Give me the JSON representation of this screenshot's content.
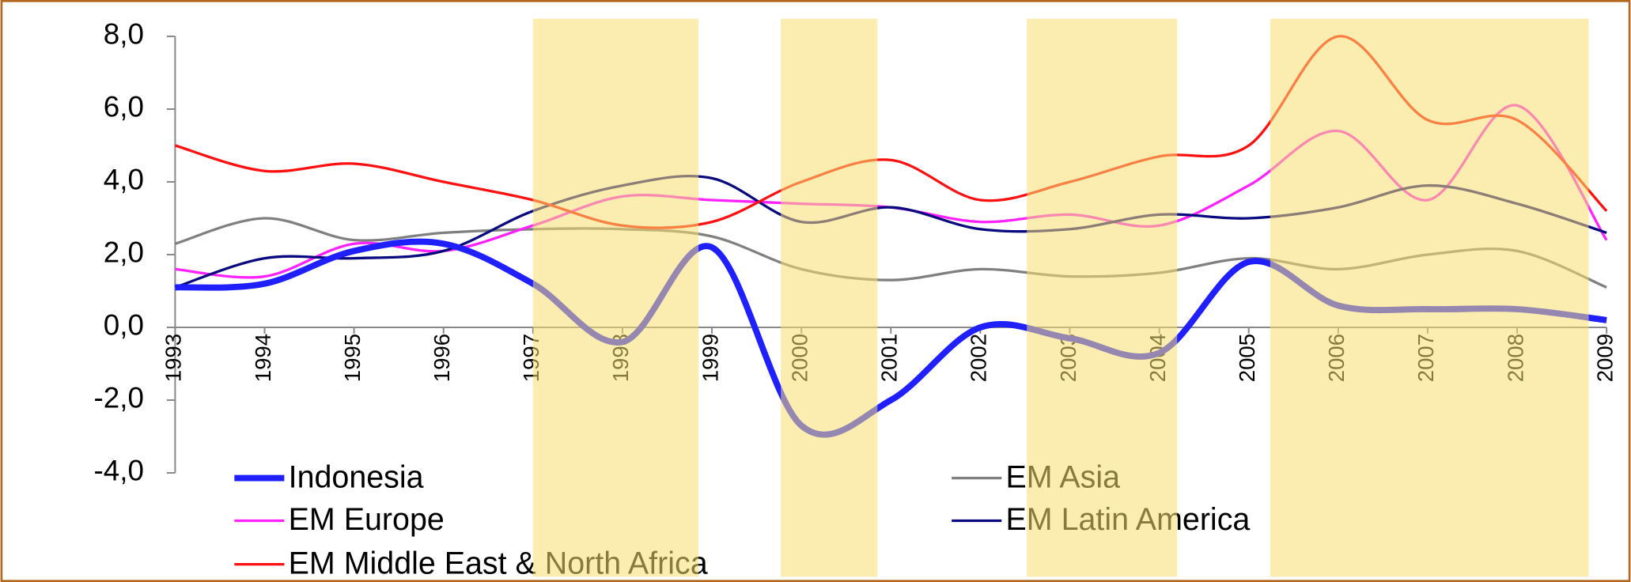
{
  "chart_data": {
    "type": "line",
    "x": [
      1993,
      1994,
      1995,
      1996,
      1997,
      1998,
      1999,
      2000,
      2001,
      2002,
      2003,
      2004,
      2005,
      2006,
      2007,
      2008,
      2009
    ],
    "xlim": [
      1993,
      2009
    ],
    "xticks": [
      1993,
      1994,
      1995,
      1996,
      1997,
      1998,
      1999,
      2000,
      2001,
      2002,
      2003,
      2004,
      2005,
      2006,
      2007,
      2008,
      2009
    ],
    "ylim": [
      -4,
      8
    ],
    "yticks": [
      {
        "value": -4,
        "label": "-4,0"
      },
      {
        "value": -2,
        "label": "-2,0"
      },
      {
        "value": 0,
        "label": "0,0"
      },
      {
        "value": 2,
        "label": "2,0"
      },
      {
        "value": 4,
        "label": "4,0"
      },
      {
        "value": 6,
        "label": "6,0"
      },
      {
        "value": 8,
        "label": "8,0"
      }
    ],
    "highlight_ranges": [
      [
        1997.0,
        1998.85
      ],
      [
        1999.77,
        2000.85
      ],
      [
        2002.52,
        2004.2
      ],
      [
        2005.24,
        2008.8
      ]
    ],
    "highlight_color": "#f7dc6f",
    "series": [
      {
        "name": "Indonesia",
        "color": "#1f1fff",
        "width": 6,
        "values": [
          1.1,
          1.2,
          2.1,
          2.3,
          1.2,
          -0.4,
          2.2,
          -2.7,
          -2.0,
          0.0,
          -0.3,
          -0.7,
          1.8,
          0.6,
          0.5,
          0.5,
          0.2
        ]
      },
      {
        "name": "EM Asia",
        "color": "#808080",
        "width": 2.5,
        "values": [
          2.3,
          3.0,
          2.4,
          2.6,
          2.7,
          2.7,
          2.5,
          1.6,
          1.3,
          1.6,
          1.4,
          1.5,
          1.9,
          1.6,
          2.0,
          2.1,
          1.1
        ]
      },
      {
        "name": "EM Europe",
        "color": "#ff22ff",
        "width": 2.5,
        "values": [
          1.6,
          1.4,
          2.3,
          2.1,
          2.8,
          3.6,
          3.5,
          3.4,
          3.3,
          2.9,
          3.1,
          2.8,
          3.9,
          5.4,
          3.5,
          6.1,
          2.4
        ]
      },
      {
        "name": "EM Latin America",
        "color": "#0a0a80",
        "width": 2.5,
        "values": [
          1.1,
          1.9,
          1.9,
          2.1,
          3.2,
          3.9,
          4.1,
          2.9,
          3.3,
          2.7,
          2.7,
          3.1,
          3.0,
          3.3,
          3.9,
          3.4,
          2.6
        ]
      },
      {
        "name": "EM Middle East & North Africa",
        "color": "#ff1010",
        "width": 2.5,
        "values": [
          5.0,
          4.3,
          4.5,
          4.0,
          3.5,
          2.8,
          2.9,
          4.0,
          4.6,
          3.5,
          4.0,
          4.7,
          5.0,
          8.0,
          5.7,
          5.7,
          3.2
        ]
      }
    ]
  }
}
